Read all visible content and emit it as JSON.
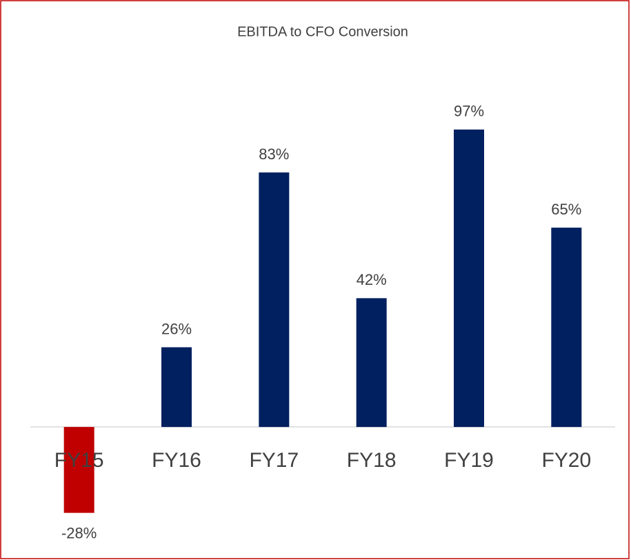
{
  "chart_data": {
    "type": "bar",
    "title": "EBITDA to CFO Conversion",
    "categories": [
      "FY15",
      "FY16",
      "FY17",
      "FY18",
      "FY19",
      "FY20"
    ],
    "values": [
      -28,
      26,
      83,
      42,
      97,
      65
    ],
    "value_labels": [
      "-28%",
      "26%",
      "83%",
      "42%",
      "97%",
      "65%"
    ],
    "colors": [
      "#c00000",
      "#002060",
      "#002060",
      "#002060",
      "#002060",
      "#002060"
    ],
    "ylim": [
      -40,
      110
    ],
    "grid": false
  }
}
